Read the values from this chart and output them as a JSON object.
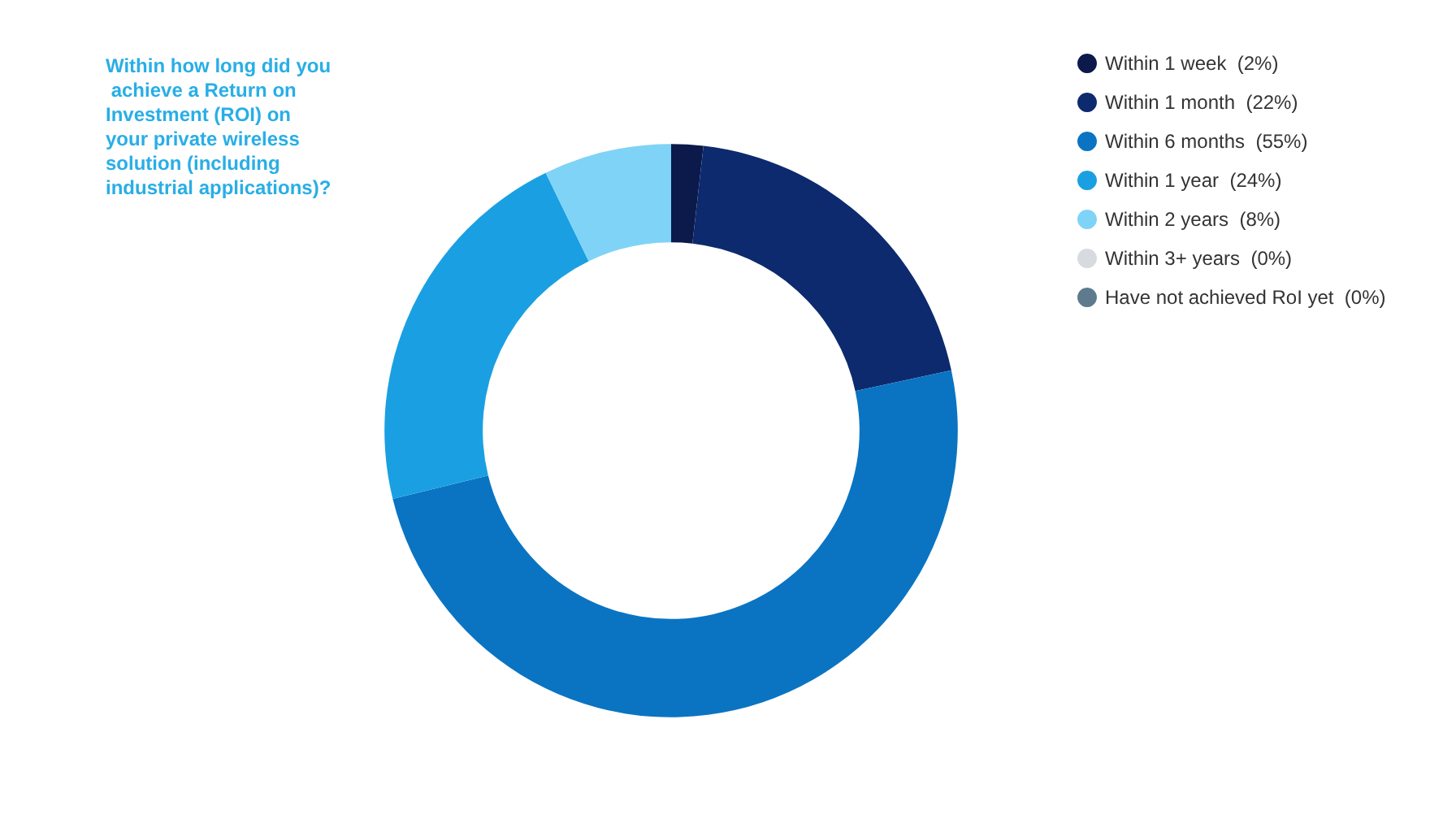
{
  "chart_data": {
    "type": "donut",
    "title": "Within how long did you achieve a Return on Investment (ROI) on your private wireless solution (including industrial applications)?",
    "categories": [
      "Within 1 week",
      "Within 1 month",
      "Within 6 months",
      "Within 1 year",
      "Within 2 years",
      "Within 3+ years",
      "Have not achieved RoI yet"
    ],
    "values": [
      2,
      22,
      55,
      24,
      8,
      0,
      0
    ],
    "value_labels": [
      "(2%)",
      "(22%)",
      "(55%)",
      "(24%)",
      "(8%)",
      "(0%)",
      "(0%)"
    ],
    "colors": [
      "#0b1a4b",
      "#0d2a6e",
      "#0a74c2",
      "#1aa0e2",
      "#7fd3f7",
      "#d7dadf",
      "#5d7b8c"
    ],
    "legend": "right"
  }
}
